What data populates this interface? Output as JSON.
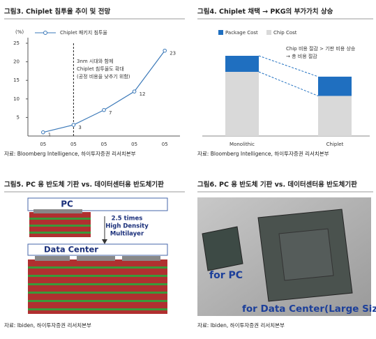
{
  "chart_data": [
    {
      "type": "line",
      "title": "그림3. Chiplet 침투율 추이 및 전망",
      "y_label": "(%)",
      "categories": [
        "05",
        "05",
        "05",
        "05",
        "05"
      ],
      "series": [
        {
          "name": "Chiplet 패키지 침투율",
          "color": "#3a78b8",
          "values": [
            1,
            3,
            7,
            12,
            23
          ]
        }
      ],
      "ylim": [
        0,
        25
      ],
      "yticks": [
        5,
        10,
        15,
        20,
        25
      ],
      "grid": false,
      "annotation": [
        "3nm 시대와 함께",
        "Chiplet 침투율도 확대",
        "(공정 비용을 낮추기 위함)"
      ],
      "source": "자료: Bloomberg Intelligence, 하이투자증권 리서치본부"
    },
    {
      "type": "stacked_bar",
      "title": "그림4. Chiplet 채택 → PKG의 부가가치 상승",
      "categories": [
        "Monolithic",
        "Chiplet"
      ],
      "series": [
        {
          "name": "Chip Cost",
          "color": "#d9d9d9",
          "values": [
            80,
            50
          ]
        },
        {
          "name": "Package Cost",
          "color": "#1f6fc0",
          "values": [
            20,
            24
          ]
        }
      ],
      "ylim": [
        0,
        100
      ],
      "annotation": [
        "Chip 비용 절감 > 기판 비용 상승",
        "→ 총 비용 절감"
      ],
      "source": "자료: Bloomberg Intelligence, 하이투자증권 리서치본부"
    }
  ],
  "figure5": {
    "title": "그림5.  PC 용 반도체 기판 vs. 데이터센터용 반도체기판",
    "labels": [
      "PC",
      "Data Center"
    ],
    "note": [
      "2.5 times",
      "High Density",
      "Multilayer"
    ],
    "source": "자료: Ibiden, 하이투자증권 리서치본부"
  },
  "figure6": {
    "title": "그림6. PC 용 반도체 기판 vs. 데이터센터용 반도체기판",
    "labels": [
      "for PC",
      "for Data Center(Large Size)"
    ],
    "source": "자료: Ibiden, 하이투자증권 리서치본부"
  }
}
